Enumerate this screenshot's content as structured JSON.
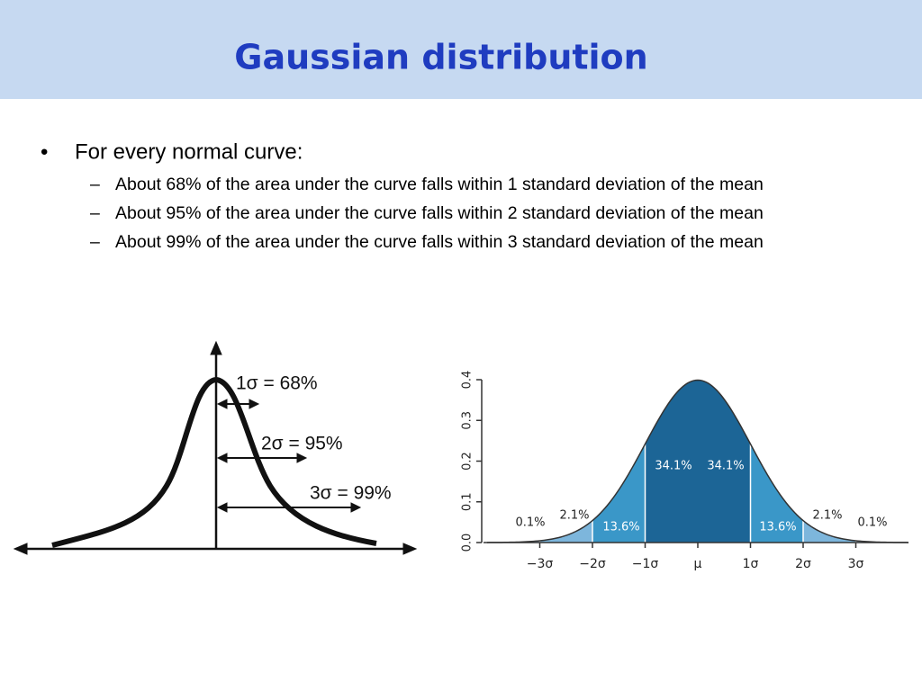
{
  "header": {
    "title": "Gaussian distribution"
  },
  "bullets": [
    {
      "text": "For every normal curve:",
      "items": [
        "About 68% of the area under the curve falls within 1 standard deviation of the mean",
        "About 95% of the area under the curve falls within 2 standard deviation of the mean",
        "About 99% of the area under the curve falls within 3 standard deviation of the mean"
      ]
    }
  ],
  "left_figure": {
    "labels": [
      "1σ = 68%",
      "2σ = 95%",
      "3σ = 99%"
    ]
  },
  "chart_data": {
    "type": "area",
    "xlim": [
      -4,
      4
    ],
    "ylim": [
      0,
      0.4
    ],
    "yticks": [
      {
        "value": 0,
        "label": "0.0"
      },
      {
        "value": 0.1,
        "label": "0.1"
      },
      {
        "value": 0.2,
        "label": "0.2"
      },
      {
        "value": 0.3,
        "label": "0.3"
      },
      {
        "value": 0.4,
        "label": "0.4"
      }
    ],
    "xticks": [
      {
        "value": -3,
        "label": "−3σ"
      },
      {
        "value": -2,
        "label": "−2σ"
      },
      {
        "value": -1,
        "label": "−1σ"
      },
      {
        "value": 0,
        "label": "μ"
      },
      {
        "value": 1,
        "label": "1σ"
      },
      {
        "value": 2,
        "label": "2σ"
      },
      {
        "value": 3,
        "label": "3σ"
      }
    ],
    "band_colors": [
      "#1c6596",
      "#3a97c8",
      "#7db6dc",
      "#a9cce8"
    ],
    "region_labels": [
      "0.1%",
      "2.1%",
      "13.6%",
      "34.1%",
      "34.1%",
      "13.6%",
      "2.1%",
      "0.1%"
    ]
  }
}
